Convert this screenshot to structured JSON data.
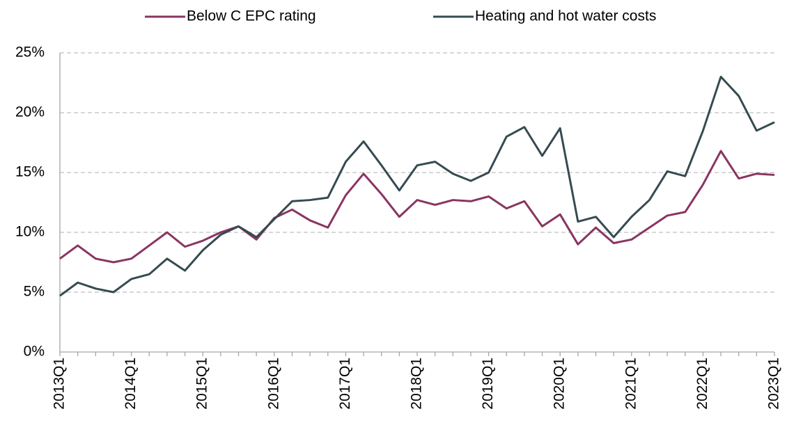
{
  "chart_data": {
    "type": "line",
    "categories": [
      "2013Q1",
      null,
      null,
      null,
      "2014Q1",
      null,
      null,
      null,
      "2015Q1",
      null,
      null,
      null,
      "2016Q1",
      null,
      null,
      null,
      "2017Q1",
      null,
      null,
      null,
      "2018Q1",
      null,
      null,
      null,
      "2019Q1",
      null,
      null,
      null,
      "2020Q1",
      null,
      null,
      null,
      "2021Q1",
      null,
      null,
      null,
      "2022Q1",
      null,
      null,
      null,
      "2023Q1"
    ],
    "series": [
      {
        "name": "Below C EPC rating",
        "color": "#8a3461",
        "values": [
          7.8,
          8.9,
          7.8,
          7.5,
          7.8,
          8.9,
          10.0,
          8.8,
          9.3,
          10.0,
          10.5,
          9.4,
          11.2,
          11.9,
          11.0,
          10.4,
          13.1,
          14.9,
          13.2,
          11.3,
          12.7,
          12.3,
          12.7,
          12.6,
          13.0,
          12.0,
          12.6,
          10.5,
          11.5,
          9.0,
          10.4,
          9.1,
          9.4,
          10.4,
          11.4,
          11.7,
          14.0,
          16.8,
          14.5,
          14.9,
          14.8
        ]
      },
      {
        "name": "Heating and hot water costs",
        "color": "#354b50",
        "values": [
          4.7,
          5.8,
          5.3,
          5.0,
          6.1,
          6.5,
          7.8,
          6.8,
          8.5,
          9.8,
          10.5,
          9.6,
          11.1,
          12.6,
          12.7,
          12.9,
          15.9,
          17.6,
          15.6,
          13.5,
          15.6,
          15.9,
          14.9,
          14.3,
          15.0,
          18.0,
          18.8,
          16.4,
          18.7,
          10.9,
          11.3,
          9.6,
          11.3,
          12.7,
          15.1,
          14.7,
          18.5,
          23.0,
          21.4,
          18.5,
          19.2
        ]
      }
    ],
    "ylim": [
      0,
      25
    ],
    "yticks": [
      {
        "value": 0,
        "label": "0%"
      },
      {
        "value": 5,
        "label": "5%"
      },
      {
        "value": 10,
        "label": "10%"
      },
      {
        "value": 15,
        "label": "15%"
      },
      {
        "value": 20,
        "label": "20%"
      },
      {
        "value": 25,
        "label": "25%"
      }
    ],
    "grid": true,
    "legend": "top"
  }
}
